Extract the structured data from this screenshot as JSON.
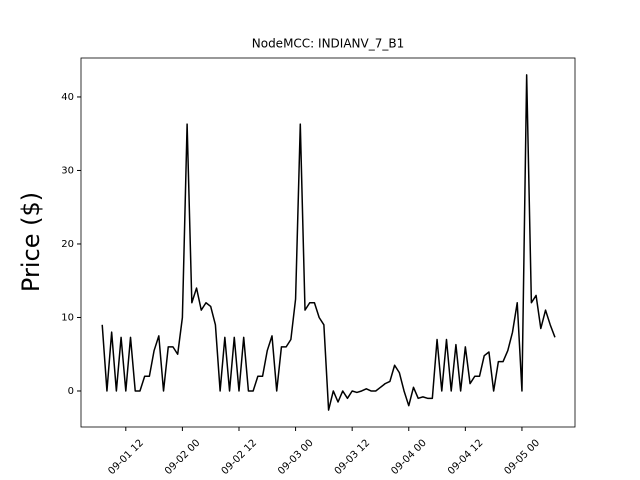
{
  "chart_data": {
    "type": "line",
    "title": "NodeMCC: INDIANV_7_B1",
    "y_label": "Price ($)",
    "x": [
      "09-01 07:00",
      "09-01 08:00",
      "09-01 09:00",
      "09-01 10:00",
      "09-01 11:00",
      "09-01 12:00",
      "09-01 13:00",
      "09-01 14:00",
      "09-01 15:00",
      "09-01 16:00",
      "09-01 17:00",
      "09-01 18:00",
      "09-01 19:00",
      "09-01 20:00",
      "09-01 21:00",
      "09-01 22:00",
      "09-01 23:00",
      "09-02 00:00",
      "09-02 01:00",
      "09-02 02:00",
      "09-02 03:00",
      "09-02 04:00",
      "09-02 05:00",
      "09-02 06:00",
      "09-02 07:00",
      "09-02 08:00",
      "09-02 09:00",
      "09-02 10:00",
      "09-02 11:00",
      "09-02 12:00",
      "09-02 13:00",
      "09-02 14:00",
      "09-02 15:00",
      "09-02 16:00",
      "09-02 17:00",
      "09-02 18:00",
      "09-02 19:00",
      "09-02 20:00",
      "09-02 21:00",
      "09-02 22:00",
      "09-02 23:00",
      "09-03 00:00",
      "09-03 01:00",
      "09-03 02:00",
      "09-03 03:00",
      "09-03 04:00",
      "09-03 05:00",
      "09-03 06:00",
      "09-03 07:00",
      "09-03 08:00",
      "09-03 09:00",
      "09-03 10:00",
      "09-03 11:00",
      "09-03 12:00",
      "09-03 13:00",
      "09-03 14:00",
      "09-03 15:00",
      "09-03 16:00",
      "09-03 17:00",
      "09-03 18:00",
      "09-03 19:00",
      "09-03 20:00",
      "09-03 21:00",
      "09-03 22:00",
      "09-03 23:00",
      "09-04 00:00",
      "09-04 01:00",
      "09-04 02:00",
      "09-04 03:00",
      "09-04 04:00",
      "09-04 05:00",
      "09-04 06:00",
      "09-04 07:00",
      "09-04 08:00",
      "09-04 09:00",
      "09-04 10:00",
      "09-04 11:00",
      "09-04 12:00",
      "09-04 13:00",
      "09-04 14:00",
      "09-04 15:00",
      "09-04 16:00",
      "09-04 17:00",
      "09-04 18:00",
      "09-04 19:00",
      "09-04 20:00",
      "09-04 21:00",
      "09-04 22:00",
      "09-04 23:00",
      "09-05 00:00",
      "09-05 01:00",
      "09-05 02:00",
      "09-05 03:00",
      "09-05 04:00",
      "09-05 05:00",
      "09-05 06:00",
      "09-05 07:00"
    ],
    "series": [
      {
        "color": "#000000",
        "values": [
          9,
          0,
          8,
          0,
          7.3,
          0,
          7.3,
          0,
          0,
          2,
          2,
          5.5,
          7.5,
          0,
          6,
          6,
          5,
          10,
          36.3,
          12,
          14,
          11,
          12,
          11.5,
          9,
          0,
          7.3,
          0,
          7.3,
          0,
          7.3,
          0,
          0,
          2,
          2,
          5.5,
          7.5,
          0,
          6,
          6,
          7,
          12.5,
          36.3,
          11,
          12,
          12,
          10,
          9,
          -2.6,
          0,
          -1.5,
          0,
          -1,
          0,
          -0.2,
          0,
          0.3,
          0,
          0,
          0.5,
          1,
          1.3,
          3.5,
          2.5,
          0,
          -2,
          0.5,
          -1,
          -0.8,
          -1,
          -1,
          7,
          0,
          7,
          0,
          6.3,
          0,
          6,
          1,
          2,
          2,
          4.8,
          5.3,
          0,
          4,
          4,
          5.5,
          8,
          12,
          0,
          43,
          12,
          13,
          8.5,
          11,
          9,
          7.3
        ]
      }
    ],
    "xlim": [
      "09-01 02:30",
      "09-05 11:15"
    ],
    "xticks": [
      {
        "value": "09-01 12:00",
        "label": "09-01 12"
      },
      {
        "value": "09-02 00:00",
        "label": "09-02 00"
      },
      {
        "value": "09-02 12:00",
        "label": "09-02 12"
      },
      {
        "value": "09-03 00:00",
        "label": "09-03 00"
      },
      {
        "value": "09-03 12:00",
        "label": "09-03 12"
      },
      {
        "value": "09-04 00:00",
        "label": "09-04 00"
      },
      {
        "value": "09-04 12:00",
        "label": "09-04 12"
      },
      {
        "value": "09-05 00:00",
        "label": "09-05 00"
      }
    ],
    "ylim": [
      -4.9,
      45.3
    ],
    "yticks": [
      0,
      10,
      20,
      30,
      40
    ]
  }
}
